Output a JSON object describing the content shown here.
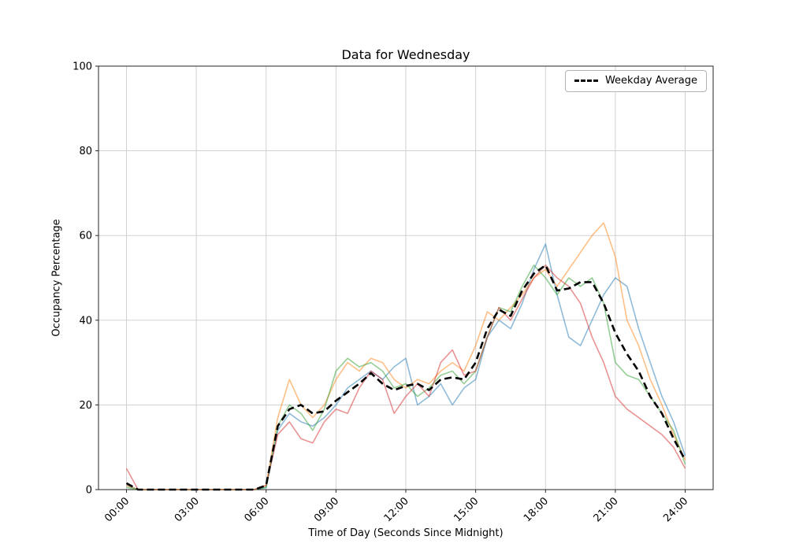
{
  "chart_data": {
    "type": "line",
    "title": "Data for Wednesday",
    "xlabel": "Time of Day (Seconds Since Midnight)",
    "ylabel": "Occupancy Percentage",
    "legend_label": "Weekday Average",
    "legend_position": "upper right",
    "grid": true,
    "ylim": [
      0,
      100
    ],
    "xlim_hours": [
      -1.2,
      25.2
    ],
    "yticks": [
      0,
      20,
      40,
      60,
      80,
      100
    ],
    "xticks": [
      {
        "hour": 0,
        "label": "00:00"
      },
      {
        "hour": 3,
        "label": "03:00"
      },
      {
        "hour": 6,
        "label": "06:00"
      },
      {
        "hour": 9,
        "label": "09:00"
      },
      {
        "hour": 12,
        "label": "12:00"
      },
      {
        "hour": 15,
        "label": "15:00"
      },
      {
        "hour": 18,
        "label": "18:00"
      },
      {
        "hour": 21,
        "label": "21:00"
      },
      {
        "hour": 24,
        "label": "24:00"
      }
    ],
    "x_hours": [
      0,
      0.5,
      1,
      1.5,
      2,
      2.5,
      3,
      3.5,
      4,
      4.5,
      5,
      5.5,
      6,
      6.5,
      7,
      7.5,
      8,
      8.5,
      9,
      9.5,
      10,
      10.5,
      11,
      11.5,
      12,
      12.5,
      13,
      13.5,
      14,
      14.5,
      15,
      15.5,
      16,
      16.5,
      17,
      17.5,
      18,
      18.5,
      19,
      19.5,
      20,
      20.5,
      21,
      21.5,
      22,
      22.5,
      23,
      23.5,
      24
    ],
    "series": [
      {
        "name": "line-blue",
        "color": "#1f77b4",
        "opacity": 0.5,
        "width": 1.6,
        "dash": false,
        "values": [
          1,
          0,
          0,
          0,
          0,
          0,
          0,
          0,
          0,
          0,
          0,
          0,
          0.5,
          14,
          18,
          16,
          15,
          17,
          20,
          24,
          26,
          28,
          26,
          29,
          31,
          20,
          22,
          25,
          20,
          24,
          26,
          36,
          40,
          38,
          44,
          52,
          58,
          46,
          36,
          34,
          40,
          46,
          50,
          48,
          38,
          30,
          22,
          16,
          8
        ]
      },
      {
        "name": "line-orange",
        "color": "#ff7f0e",
        "opacity": 0.5,
        "width": 1.6,
        "dash": false,
        "values": [
          1,
          0,
          0,
          0,
          0,
          0,
          0,
          0,
          0,
          0,
          0,
          0,
          1,
          17,
          26,
          20,
          17,
          20,
          26,
          30,
          28,
          31,
          30,
          26,
          24,
          26,
          25,
          28,
          30,
          28,
          34,
          42,
          40,
          43,
          46,
          50,
          52,
          48,
          52,
          56,
          60,
          63,
          55,
          40,
          34,
          26,
          20,
          13,
          7
        ]
      },
      {
        "name": "line-green",
        "color": "#2ca02c",
        "opacity": 0.5,
        "width": 1.6,
        "dash": false,
        "values": [
          0.5,
          0,
          0,
          0,
          0,
          0,
          0,
          0,
          0,
          0,
          0,
          0,
          0.5,
          15,
          20,
          18,
          14,
          19,
          28,
          31,
          29,
          30,
          28,
          24,
          25,
          22,
          24,
          27,
          28,
          25,
          28,
          36,
          43,
          42,
          48,
          53,
          50,
          46,
          50,
          48,
          50,
          44,
          30,
          27,
          26,
          22,
          18,
          14,
          6
        ]
      },
      {
        "name": "line-red",
        "color": "#d62728",
        "opacity": 0.5,
        "width": 1.6,
        "dash": false,
        "values": [
          5,
          0,
          0,
          0,
          0,
          0,
          0,
          0,
          0,
          0,
          0,
          0,
          1,
          13,
          16,
          12,
          11,
          16,
          19,
          18,
          24,
          28,
          26,
          18,
          22,
          25,
          22,
          30,
          33,
          27,
          28,
          36,
          43,
          40,
          45,
          50,
          53,
          50,
          48,
          44,
          36,
          30,
          22,
          19,
          17,
          15,
          13,
          10,
          5
        ]
      },
      {
        "name": "weekday-average",
        "color": "#000000",
        "opacity": 1,
        "width": 2.6,
        "dash": true,
        "values": [
          1.5,
          0,
          0,
          0,
          0,
          0,
          0,
          0,
          0,
          0,
          0,
          0,
          1,
          15,
          19,
          20,
          18,
          18.5,
          21,
          23,
          25,
          27.5,
          25,
          23.5,
          24.5,
          25,
          23.5,
          26,
          26.5,
          26,
          30,
          38,
          42.5,
          41,
          47,
          51,
          53,
          47,
          47.5,
          49,
          49,
          44,
          37,
          32,
          28,
          22,
          18,
          12,
          7
        ]
      }
    ],
    "colors": {
      "grid": "#cccccc",
      "spine": "#262626",
      "legend_border": "#b3b3b3"
    }
  }
}
